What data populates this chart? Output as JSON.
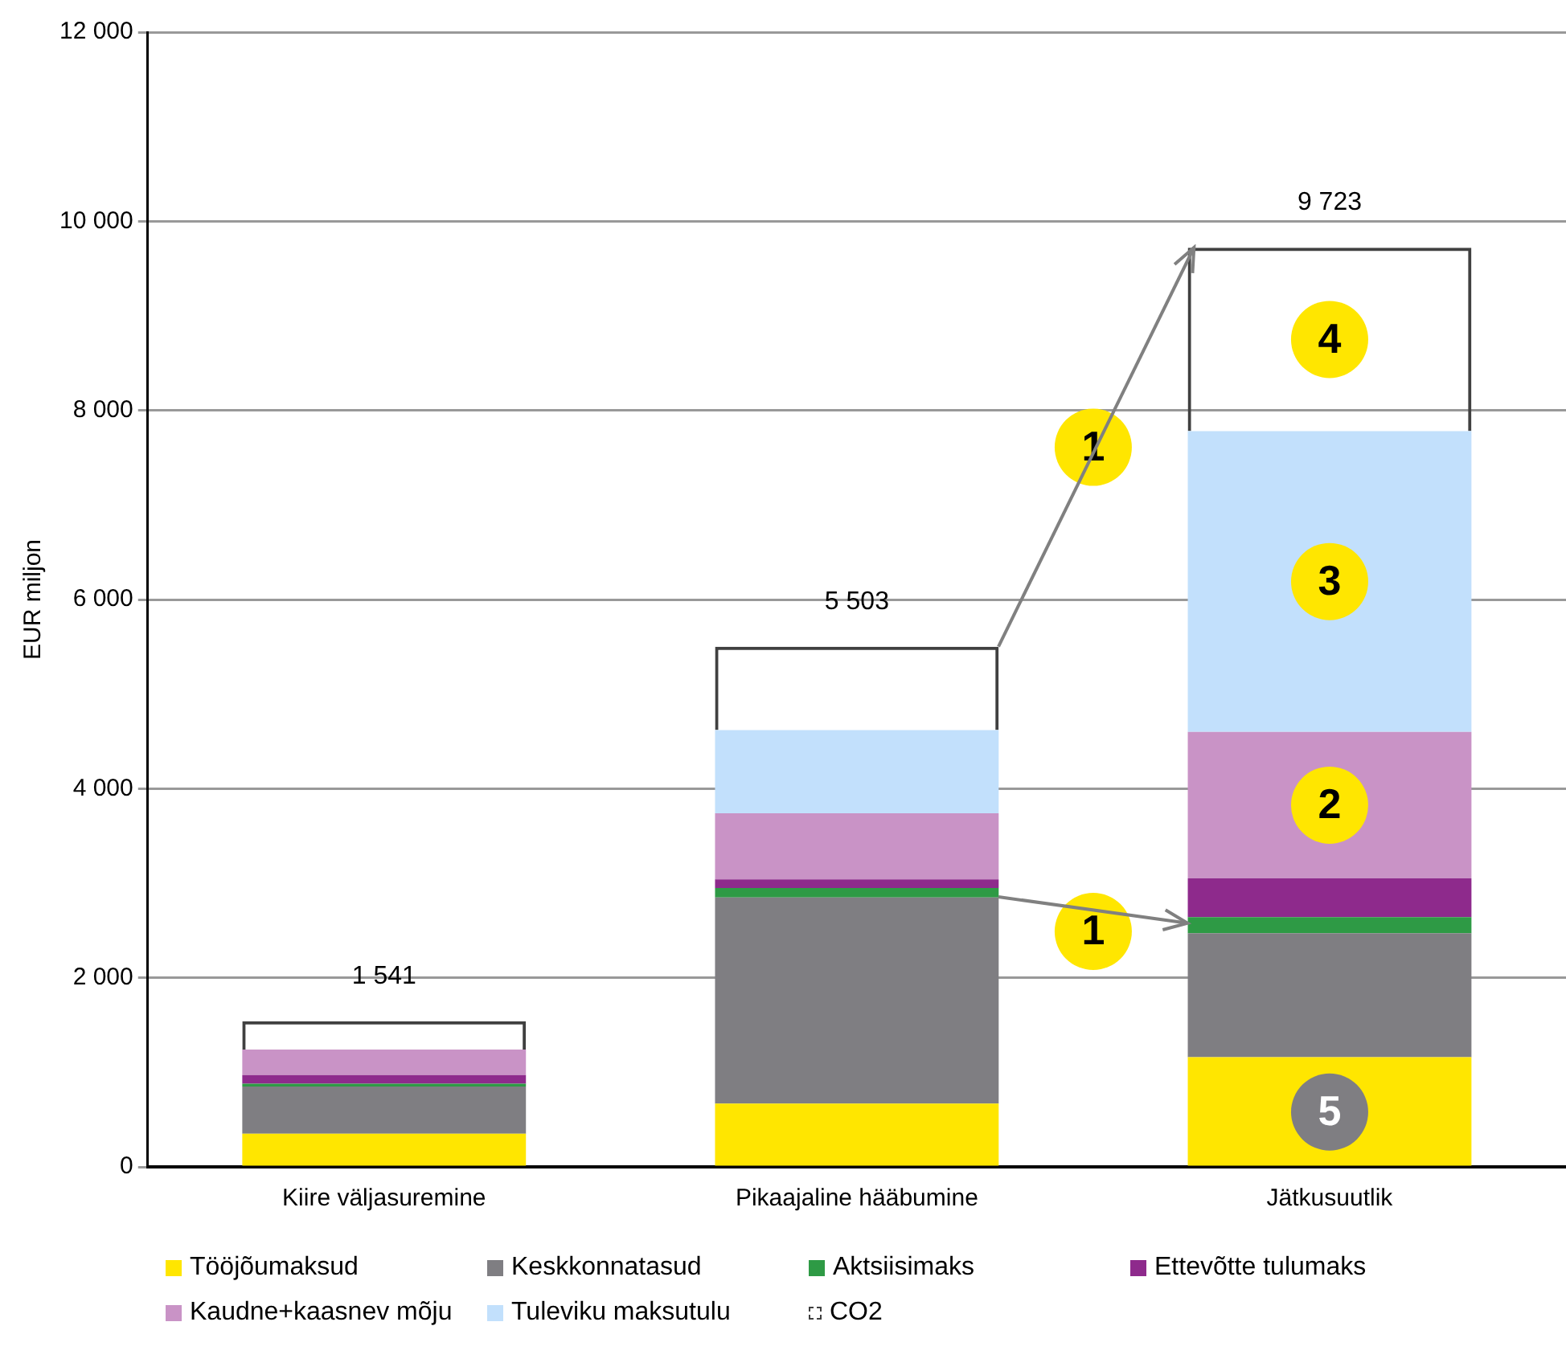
{
  "chart_data": {
    "type": "bar",
    "stacked": true,
    "ylabel": "EUR miljon",
    "categories": [
      "Kiire väljasuremine",
      "Pikaajaline hääbumine",
      "Jätkusuutlik"
    ],
    "series": [
      {
        "name": "Tööjõumaksud",
        "color": "#ffe600",
        "values": [
          350,
          670,
          1160
        ]
      },
      {
        "name": "Keskkonnatasud",
        "color": "#7f7e82",
        "values": [
          500,
          2180,
          1310
        ]
      },
      {
        "name": "Aktsiisimaks",
        "color": "#2e9a45",
        "values": [
          30,
          100,
          170
        ]
      },
      {
        "name": "Ettevõtte tulumaks",
        "color": "#8e2a8c",
        "values": [
          90,
          90,
          410
        ]
      },
      {
        "name": "Kaudne+kaasnev mõju",
        "color": "#c993c6",
        "values": [
          270,
          700,
          1550
        ]
      },
      {
        "name": "Tuleviku maksutulu",
        "color": "#c2e0fc",
        "values": [
          0,
          880,
          3180
        ]
      },
      {
        "name": "CO2",
        "color": "#404040",
        "line_style": "dashed",
        "values": [
          300,
          880,
          1940
        ]
      }
    ],
    "totals": [
      "1 541",
      "5 503",
      "9 723"
    ],
    "ylim": [
      0,
      12000
    ],
    "yticks": [
      {
        "value": 0,
        "label": "0"
      },
      {
        "value": 2000,
        "label": "2 000"
      },
      {
        "value": 4000,
        "label": "4 000"
      },
      {
        "value": 6000,
        "label": "6 000"
      },
      {
        "value": 8000,
        "label": "8 000"
      },
      {
        "value": 10000,
        "label": "10 000"
      },
      {
        "value": 12000,
        "label": "12 000"
      }
    ],
    "grid": "y",
    "legend": "bottom",
    "annotations": [
      "1",
      "1",
      "2",
      "3",
      "4",
      "5"
    ]
  }
}
